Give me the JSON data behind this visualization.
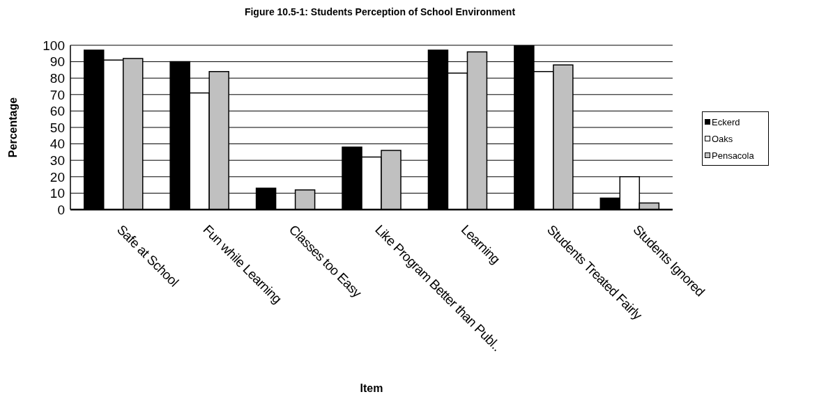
{
  "chart_data": {
    "type": "bar",
    "title": "Figure 10.5-1: Students Perception of School Environment",
    "xlabel": "Item",
    "ylabel": "Percentage",
    "categories": [
      "Safe at School",
      "Fun while Learning",
      "Classes too Easy",
      "Like Program Better than Publ..",
      "Learning",
      "Students Treated Fairly",
      "Students Ignored"
    ],
    "series": [
      {
        "name": "Eckerd",
        "color": "#000000",
        "values": [
          97,
          90,
          13,
          38,
          97,
          100,
          7
        ]
      },
      {
        "name": "Oaks",
        "color": "#ffffff",
        "values": [
          91,
          71,
          null,
          32,
          83,
          84,
          20
        ]
      },
      {
        "name": "Pensacola",
        "color": "#c0c0c0",
        "values": [
          92,
          84,
          12,
          36,
          96,
          88,
          4
        ]
      }
    ],
    "ylim": [
      0,
      100
    ],
    "yticks": [
      0,
      10,
      20,
      30,
      40,
      50,
      60,
      70,
      80,
      90,
      100
    ],
    "grid": "y",
    "legend": "right"
  }
}
